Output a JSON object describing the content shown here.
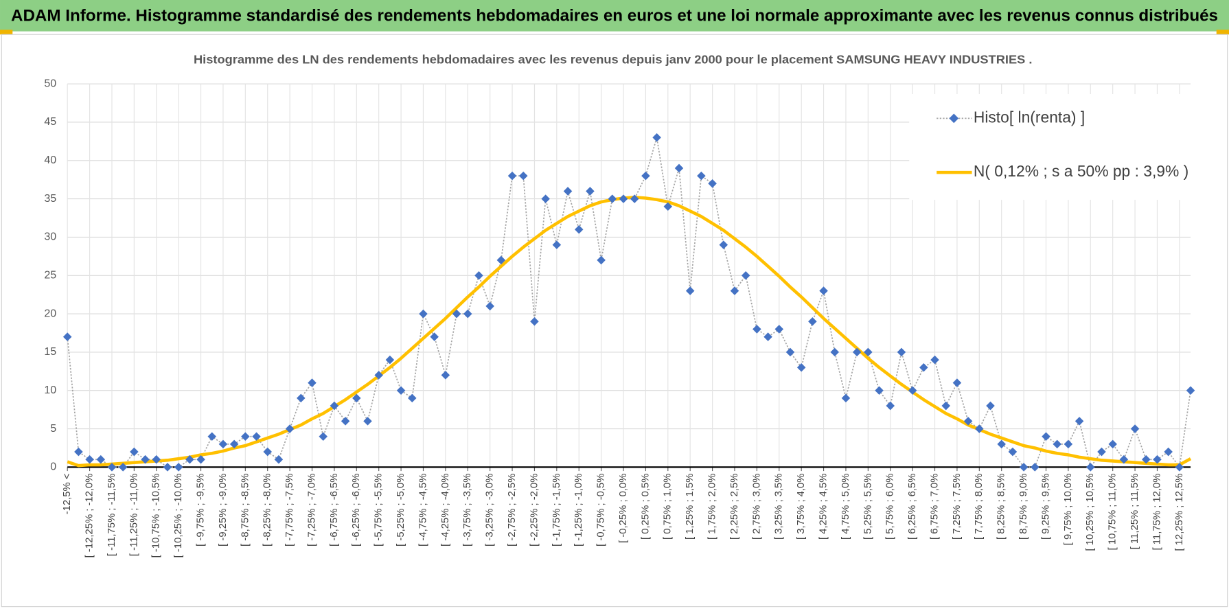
{
  "header": {
    "title": "ADAM Informe. Histogramme standardisé des rendements hebdomadaires en euros et une loi normale approximante avec les revenus connus distribués"
  },
  "chart_data": {
    "type": "line",
    "title": "Histogramme des LN des rendements hebdomadaires avec les revenus depuis janv 2000 pour le placement SAMSUNG HEAVY INDUSTRIES .",
    "categories": [
      "-12,5% <",
      null,
      "[ -12,25% ; -12,0%",
      null,
      "[ -11,75% ; -11,5%",
      null,
      "[ -11,25% ; -11,0%",
      null,
      "[ -10,75% ; -10,5%",
      null,
      "[ -10,25% ; -10,0%",
      null,
      "[ -9,75% ; -9,5%",
      null,
      "[ -9,25% ; -9,0%",
      null,
      "[ -8,75% ; -8,5%",
      null,
      "[ -8,25% ; -8,0%",
      null,
      "[ -7,75% ; -7,5%",
      null,
      "[ -7,25% ; -7,0%",
      null,
      "[ -6,75% ; -6,5%",
      null,
      "[ -6,25% ; -6,0%",
      null,
      "[ -5,75% ; -5,5%",
      null,
      "[ -5,25% ; -5,0%",
      null,
      "[ -4,75% ; -4,5%",
      null,
      "[ -4,25% ; -4,0%",
      null,
      "[ -3,75% ; -3,5%",
      null,
      "[ -3,25% ; -3,0%",
      null,
      "[ -2,75% ; -2,5%",
      null,
      "[ -2,25% ; -2,0%",
      null,
      "[ -1,75% ; -1,5%",
      null,
      "[ -1,25% ; -1,0%",
      null,
      "[ -0,75% ; -0,5%",
      null,
      "[ -0,25% ; 0,0%",
      null,
      "[ 0,25% ; 0,5%",
      null,
      "[ 0,75% ; 1,0%",
      null,
      "[ 1,25% ; 1,5%",
      null,
      "[ 1,75% ; 2,0%",
      null,
      "[ 2,25% ; 2,5%",
      null,
      "[ 2,75% ; 3,0%",
      null,
      "[ 3,25% ; 3,5%",
      null,
      "[ 3,75% ; 4,0%",
      null,
      "[ 4,25% ; 4,5%",
      null,
      "[ 4,75% ; 5,0%",
      null,
      "[ 5,25% ; 5,5%",
      null,
      "[ 5,75% ; 6,0%",
      null,
      "[ 6,25% ; 6,5%",
      null,
      "[ 6,75% ; 7,0%",
      null,
      "[ 7,25% ; 7,5%",
      null,
      "[ 7,75% ; 8,0%",
      null,
      "[ 8,25% ; 8,5%",
      null,
      "[ 8,75% ; 9,0%",
      null,
      "[ 9,25% ; 9,5%",
      null,
      "[ 9,75% ; 10,0%",
      null,
      "[ 10,25% ; 10,5%",
      null,
      "[ 10,75% ; 11,0%",
      null,
      "[ 11,25% ; 11,5%",
      null,
      "[ 11,75% ; 12,0%",
      null,
      "[ 12,25% ; 12,5%",
      null
    ],
    "series": [
      {
        "name": "Histo[ ln(renta) ]",
        "color": "#4472c4",
        "line_color": "#a5a5a5",
        "values": [
          17,
          2,
          1,
          1,
          0,
          0,
          2,
          1,
          1,
          0,
          0,
          1,
          1,
          4,
          3,
          3,
          4,
          4,
          2,
          1,
          5,
          9,
          11,
          4,
          8,
          6,
          9,
          6,
          12,
          14,
          10,
          9,
          20,
          17,
          12,
          20,
          20,
          25,
          21,
          27,
          38,
          38,
          19,
          35,
          29,
          36,
          31,
          36,
          27,
          35,
          35,
          35,
          38,
          43,
          34,
          39,
          23,
          38,
          37,
          29,
          23,
          25,
          18,
          17,
          18,
          15,
          13,
          19,
          23,
          15,
          9,
          15,
          15,
          10,
          8,
          15,
          10,
          13,
          14,
          8,
          11,
          6,
          5,
          8,
          3,
          2,
          0,
          0,
          4,
          3,
          3,
          6,
          0,
          2,
          3,
          1,
          5,
          1,
          1,
          2,
          0,
          10
        ]
      },
      {
        "name": "N( 0,12% ; s a 50% pp : 3,9% )",
        "color": "#ffc000",
        "values": [
          0.7,
          0.2,
          0.3,
          0.3,
          0.4,
          0.5,
          0.6,
          0.7,
          0.8,
          0.9,
          1.1,
          1.3,
          1.6,
          1.8,
          2.1,
          2.5,
          2.8,
          3.3,
          3.8,
          4.3,
          4.9,
          5.5,
          6.3,
          7.0,
          7.9,
          8.8,
          9.8,
          10.8,
          11.9,
          13.0,
          14.2,
          15.5,
          16.8,
          18.1,
          19.4,
          20.8,
          22.2,
          23.5,
          24.9,
          26.2,
          27.5,
          28.7,
          29.8,
          30.9,
          31.8,
          32.7,
          33.4,
          34.1,
          34.6,
          34.9,
          35.1,
          35.2,
          35.1,
          34.9,
          34.6,
          34.1,
          33.4,
          32.7,
          31.8,
          30.9,
          29.8,
          28.7,
          27.5,
          26.2,
          24.9,
          23.5,
          22.2,
          20.8,
          19.4,
          18.1,
          16.8,
          15.5,
          14.2,
          13.0,
          11.9,
          10.8,
          9.8,
          8.8,
          7.9,
          7.0,
          6.3,
          5.5,
          4.9,
          4.3,
          3.8,
          3.3,
          2.8,
          2.5,
          2.1,
          1.8,
          1.6,
          1.3,
          1.1,
          0.9,
          0.8,
          0.7,
          0.6,
          0.5,
          0.4,
          0.3,
          0.3,
          1.1
        ]
      }
    ],
    "ylim": [
      0,
      50
    ],
    "yticks": [
      0,
      5,
      10,
      15,
      20,
      25,
      30,
      35,
      40,
      45,
      50
    ],
    "grid": true,
    "legend": "upper right"
  }
}
